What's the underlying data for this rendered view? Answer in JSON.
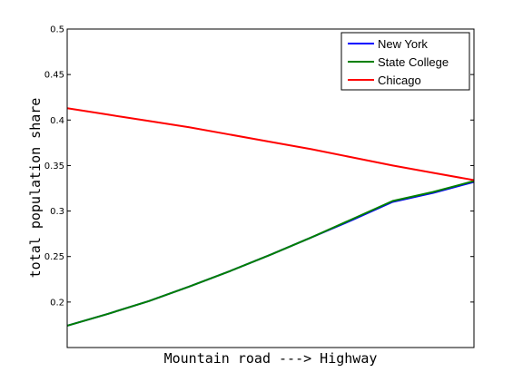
{
  "chart_data": {
    "type": "line",
    "title": "",
    "xlabel": "Mountain road ---> Highway",
    "ylabel": "total population share",
    "xlim": [
      0,
      1
    ],
    "ylim": [
      0.15,
      0.5
    ],
    "y_ticks": [
      "0.2",
      "0.25",
      "0.3",
      "0.35",
      "0.4",
      "0.45",
      "0.5"
    ],
    "y_tick_values": [
      0.2,
      0.25,
      0.3,
      0.35,
      0.4,
      0.45,
      0.5
    ],
    "x_ticks": [],
    "grid": false,
    "legend_position": "top-right",
    "x": [
      0,
      0.1,
      0.2,
      0.3,
      0.4,
      0.5,
      0.6,
      0.7,
      0.8,
      0.9,
      1.0
    ],
    "series": [
      {
        "name": "New York",
        "color": "#0000ff",
        "values": [
          0.174,
          0.187,
          0.201,
          0.217,
          0.234,
          0.252,
          0.271,
          0.29,
          0.31,
          0.32,
          0.332
        ]
      },
      {
        "name": "State College",
        "color": "#008000",
        "values": [
          0.174,
          0.187,
          0.201,
          0.217,
          0.234,
          0.252,
          0.271,
          0.291,
          0.311,
          0.321,
          0.333
        ]
      },
      {
        "name": "Chicago",
        "color": "#ff0000",
        "values": [
          0.413,
          0.406,
          0.399,
          0.392,
          0.384,
          0.376,
          0.368,
          0.359,
          0.35,
          0.342,
          0.334
        ]
      }
    ]
  }
}
